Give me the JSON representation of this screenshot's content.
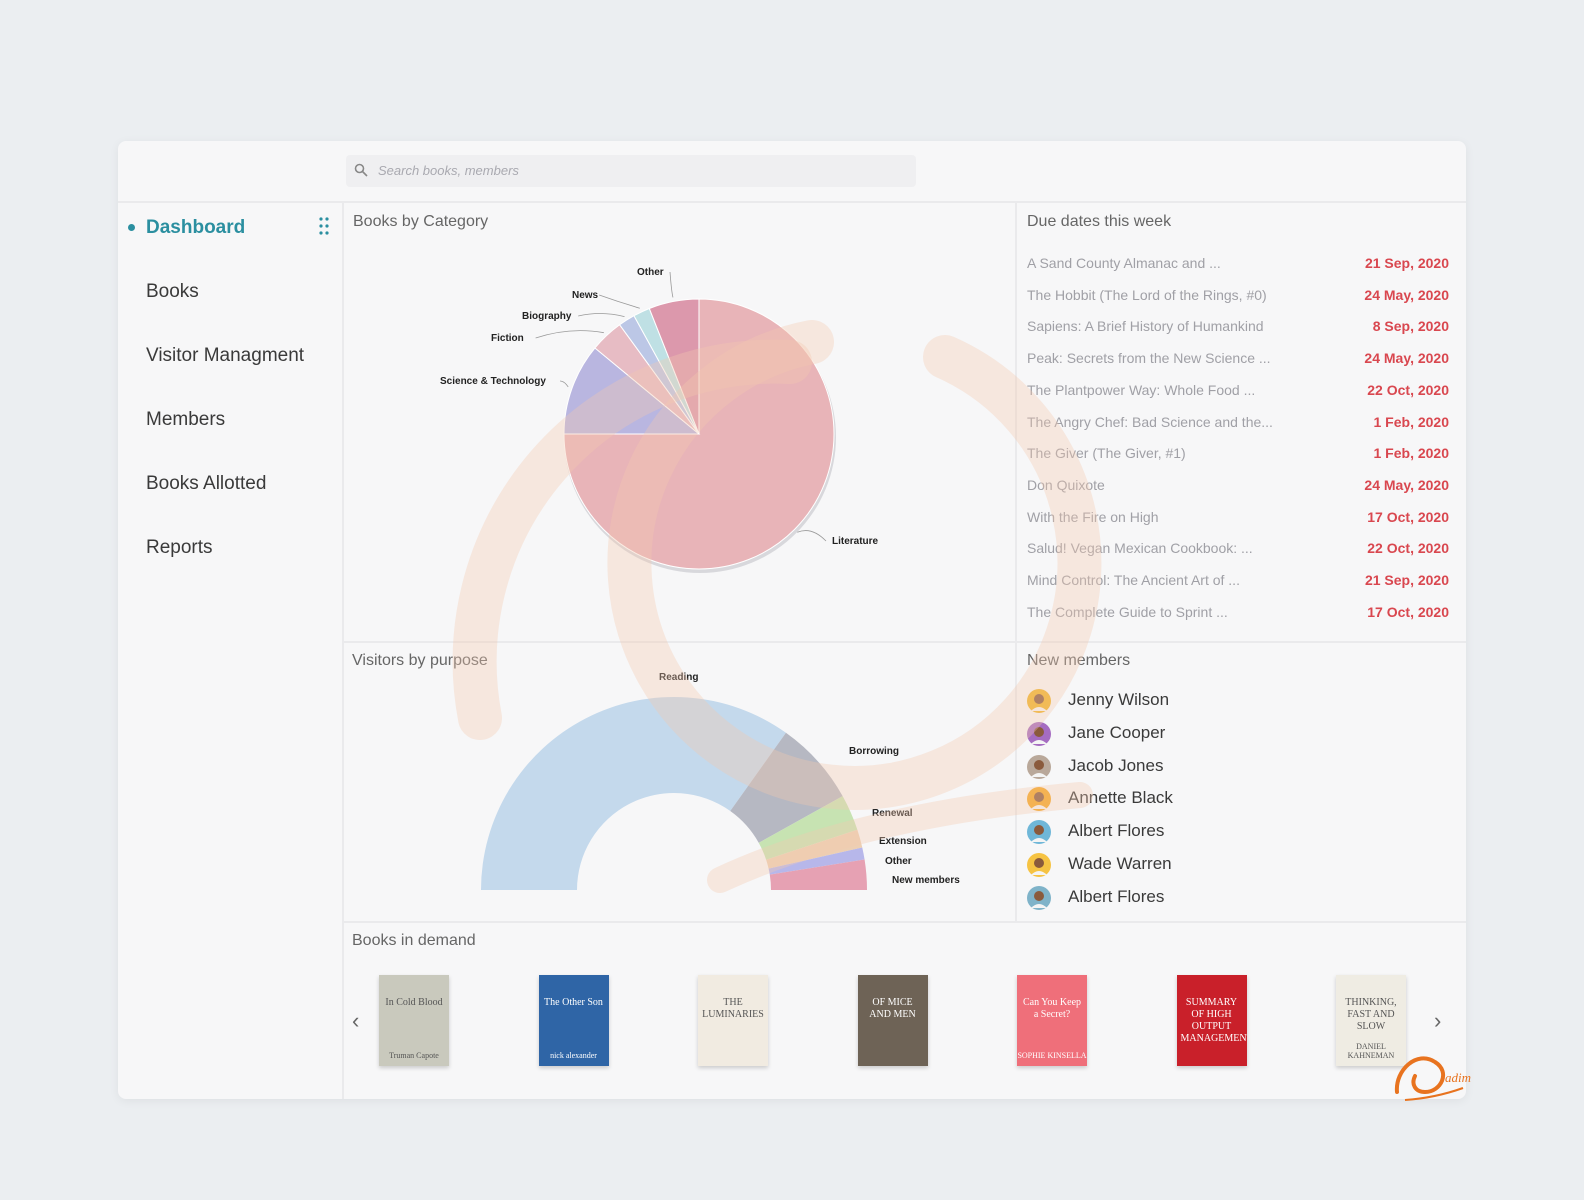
{
  "search": {
    "placeholder": "Search books, members"
  },
  "sidebar": {
    "items": [
      {
        "label": "Dashboard",
        "active": true
      },
      {
        "label": "Books"
      },
      {
        "label": "Visitor Managment"
      },
      {
        "label": "Members"
      },
      {
        "label": "Books Allotted"
      },
      {
        "label": "Reports"
      }
    ]
  },
  "panels": {
    "category_title": "Books by Category",
    "visitors_title": "Visitors by purpose",
    "due_title": "Due dates this week",
    "members_title": "New members",
    "demand_title": "Books in demand"
  },
  "chart_data": [
    {
      "type": "pie",
      "title": "Books by Category",
      "categories": [
        "Literature",
        "Science & Technology",
        "Fiction",
        "Biography",
        "News",
        "Other"
      ],
      "values": [
        75,
        11,
        4,
        2,
        2,
        6
      ],
      "colors": [
        "#e8b4b8",
        "#b9b6e0",
        "#e7bcc4",
        "#bcc7e6",
        "#bfe0e4",
        "#dc98ac"
      ]
    },
    {
      "type": "pie",
      "subtype": "half-donut",
      "title": "Visitors by purpose",
      "categories": [
        "Reading",
        "Borrowing",
        "Renewal",
        "Extension",
        "Other",
        "New members"
      ],
      "values": [
        69,
        14,
        6,
        3,
        2,
        5
      ],
      "colors": [
        "#c4d9ec",
        "#b6b8c2",
        "#c7e3b2",
        "#edcfb3",
        "#b7b7ea",
        "#e6a1b3"
      ]
    }
  ],
  "due_dates": [
    {
      "title": "A Sand County Almanac and ...",
      "date": "21 Sep, 2020"
    },
    {
      "title": "The Hobbit (The Lord of the Rings, #0)",
      "date": "24 May, 2020"
    },
    {
      "title": "Sapiens: A Brief History of Humankind",
      "date": "8 Sep, 2020"
    },
    {
      "title": "Peak: Secrets from the New Science ...",
      "date": "24 May, 2020"
    },
    {
      "title": "The Plantpower Way: Whole Food ...",
      "date": "22 Oct, 2020"
    },
    {
      "title": "The Angry Chef: Bad Science and the...",
      "date": "1 Feb, 2020"
    },
    {
      "title": "The Giver (The Giver, #1)",
      "date": "1 Feb, 2020"
    },
    {
      "title": "Don Quixote",
      "date": "24 May, 2020"
    },
    {
      "title": "With the Fire on High",
      "date": "17 Oct, 2020"
    },
    {
      "title": "Salud! Vegan Mexican Cookbook: ...",
      "date": "22 Oct, 2020"
    },
    {
      "title": "Mind Control: The Ancient Art of ...",
      "date": "21 Sep, 2020"
    },
    {
      "title": "The Complete Guide to Sprint ...",
      "date": "17 Oct, 2020"
    }
  ],
  "members": [
    {
      "name": "Jenny Wilson",
      "color": "#f0b429"
    },
    {
      "name": "Jane Cooper",
      "color": "#a56cc1"
    },
    {
      "name": "Jacob Jones",
      "color": "#b9a89a"
    },
    {
      "name": "Annette Black",
      "color": "#f5a623"
    },
    {
      "name": "Albert Flores",
      "color": "#6fb7d8"
    },
    {
      "name": "Wade Warren",
      "color": "#f6c343"
    },
    {
      "name": "Albert Flores",
      "color": "#7fb3c9"
    }
  ],
  "books": [
    {
      "title": "In Cold Blood",
      "author": "Truman Capote",
      "bg": "#c9c9bd"
    },
    {
      "title": "The Other Son",
      "author": "nick alexander",
      "bg": "#2f65a6"
    },
    {
      "title": "THE LUMINARIES",
      "author": "",
      "bg": "#f1ebe1"
    },
    {
      "title": "OF MICE AND MEN",
      "author": "",
      "bg": "#6e6356"
    },
    {
      "title": "Can You Keep a Secret?",
      "author": "SOPHIE KINSELLA",
      "bg": "#ef6f7a"
    },
    {
      "title": "SUMMARY OF HIGH OUTPUT MANAGEMENT",
      "author": "",
      "bg": "#c9202a"
    },
    {
      "title": "THINKING, FAST AND SLOW",
      "author": "DANIEL KAHNEMAN",
      "bg": "#efece3"
    }
  ],
  "brand": {
    "logo_text": "adim",
    "accent": "#e8731f"
  }
}
